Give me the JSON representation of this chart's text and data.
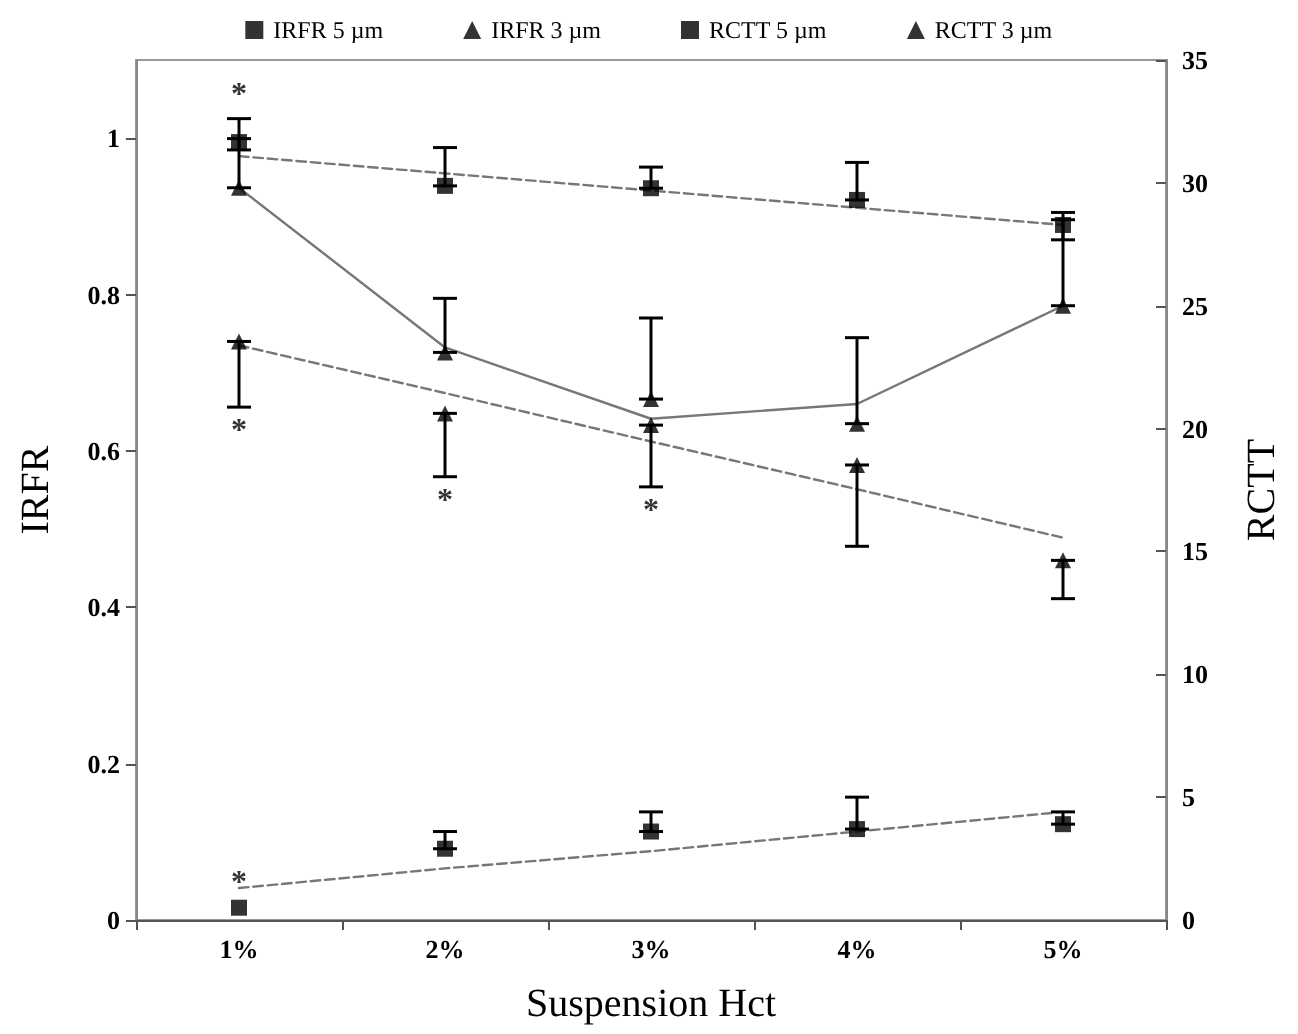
{
  "chart_data": {
    "type": "scatter",
    "xlabel": "Suspension Hct",
    "ylabel": "IRFR",
    "y2label": "RCTT",
    "categories": [
      "1%",
      "2%",
      "3%",
      "4%",
      "5%"
    ],
    "series": [
      {
        "name": "IRFR 5 µm",
        "color": "#000000",
        "marker": "square",
        "values": [
          0.995,
          0.939,
          0.936,
          0.921,
          0.889
        ],
        "errors": [
          [
            0.985,
            1.025
          ],
          [
            0.939,
            0.988
          ],
          [
            0.936,
            0.963
          ],
          [
            0.921,
            0.969
          ],
          [
            0.87,
            0.905
          ]
        ]
      },
      {
        "name": "IRFR 3 µm",
        "color": "#000000",
        "marker": "triangle",
        "values": [
          0.74,
          0.648,
          0.633,
          0.582,
          0.46
        ],
        "errors": [
          [
            0.656,
            0.74
          ],
          [
            0.567,
            0.648
          ],
          [
            0.554,
            0.633
          ],
          [
            0.478,
            0.582
          ],
          [
            0.411,
            0.46
          ]
        ]
      },
      {
        "name": "RCTT 5 µm",
        "color": "#000000",
        "marker": "square",
        "axis": "y2",
        "values": [
          0.5,
          2.9,
          3.6,
          3.7,
          3.9
        ],
        "errors": [
          null,
          [
            2.9,
            3.6
          ],
          [
            3.6,
            4.4
          ],
          [
            3.7,
            5.0
          ],
          [
            3.9,
            4.4
          ]
        ]
      },
      {
        "name": "RCTT 3 µm",
        "color": "#000000",
        "marker": "triangle",
        "axis": "y2",
        "values": [
          29.8,
          23.1,
          21.2,
          20.2,
          25.0
        ],
        "errors": [
          [
            29.8,
            31.8
          ],
          [
            23.1,
            25.3
          ],
          [
            21.2,
            24.5
          ],
          [
            20.2,
            23.7
          ],
          [
            25.0,
            28.5
          ]
        ]
      },
      {
        "type": "line",
        "color": "#777777",
        "marker": "none",
        "line_style": "dashed",
        "values": [
          0.977,
          0.955,
          0.933,
          0.911,
          0.889
        ]
      },
      {
        "type": "line",
        "color": "#777777",
        "marker": "none",
        "line_style": "dashed",
        "values": [
          0.735,
          0.674,
          0.612,
          0.551,
          0.489
        ]
      },
      {
        "type": "line",
        "color": "#777777",
        "marker": "none",
        "line_style": "dashed",
        "axis": "y2",
        "values": [
          1.3,
          2.1,
          2.8,
          3.6,
          4.4
        ]
      },
      {
        "type": "line",
        "color": "#777777",
        "marker": "none",
        "line_style": "solid",
        "axis": "y2",
        "values": [
          29.8,
          23.3,
          20.4,
          21.0,
          25.0
        ]
      }
    ],
    "ylim": [
      0,
      1.1
    ],
    "yticks": [
      0,
      0.2,
      0.4,
      0.6,
      0.8,
      1
    ],
    "y2lim": [
      0,
      35
    ],
    "y2ticks": [
      0,
      5,
      10,
      15,
      20,
      25,
      30,
      35
    ],
    "annotations": [
      {
        "text": "*",
        "x": "1%",
        "y": 1.025
      },
      {
        "text": "*",
        "x": "1%",
        "y": 0.656
      },
      {
        "text": "*",
        "x": "2%",
        "y": 0.567
      },
      {
        "text": "*",
        "x": "3%",
        "y": 0.554
      },
      {
        "text": "*",
        "x": "1%",
        "y": 0.016
      }
    ],
    "grid": false,
    "legend": "top"
  }
}
